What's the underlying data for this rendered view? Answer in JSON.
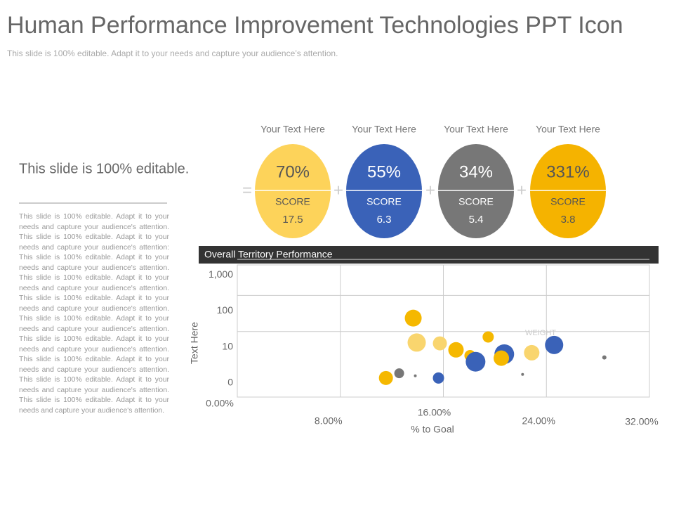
{
  "header": {
    "title": "Human Performance Improvement Technologies PPT Icon",
    "subtitle": "This slide is 100% editable. Adapt it to your needs and capture your audience’s attention."
  },
  "sidebar": {
    "heading": "This slide is 100% editable.",
    "body": "This slide is 100% editable. Adapt it to your needs and capture your audience's attention. This slide is 100% editable. Adapt it to your needs and capture your audience's attention: This slide is 100% editable. Adapt it to your needs and capture your audience's attention. This slide is 100% editable. Adapt it to your needs and capture your audience's attention. This slide is 100% editable. Adapt it to your needs and capture your audience's attention. This slide is 100% editable. Adapt it to your needs and capture your audience's attention. This slide is 100% editable. Adapt it to your needs and capture your audience's attention. This slide is 100% editable. Adapt it to your needs and capture your audience's attention. This slide is 100% editable. Adapt it to your needs and capture your audience's attention. This slide is 100% editable. Adapt it to your needs and capture your audience's attention."
  },
  "operators": [
    "=",
    "+",
    "+",
    "+"
  ],
  "cards": [
    {
      "caption": "Your Text Here",
      "percent": "70%",
      "label": "SCORE",
      "score": "17.5",
      "color": "#fdd35a"
    },
    {
      "caption": "Your Text Here",
      "percent": "55%",
      "label": "SCORE",
      "score": "6.3",
      "color": "#3a62b8"
    },
    {
      "caption": "Your Text Here",
      "percent": "34%",
      "label": "SCORE",
      "score": "5.4",
      "color": "#777777"
    },
    {
      "caption": "Your Text Here",
      "percent": "331%",
      "label": "SCORE",
      "score": "3.8",
      "color": "#f5b300"
    }
  ],
  "chart_data": {
    "type": "bubble",
    "title": "Overall Territory Performance",
    "xlabel": "% to Goal",
    "ylabel": "Text Here",
    "annotation": "WEIGHT",
    "x": [
      13.66,
      13.93,
      15.73,
      16.98,
      18.07,
      18.5,
      19.48,
      20.73,
      20.5,
      22.86,
      24.6,
      28.5,
      22.15,
      13.82,
      12.57,
      11.54,
      15.62
    ],
    "values": [
      82,
      21,
      19,
      9.2,
      7.6,
      5.9,
      35,
      8,
      6.9,
      8.4,
      15,
      7.1,
      2.4,
      2,
      2.7,
      1.4,
      1.4
    ],
    "sizes": [
      12,
      13,
      10,
      11,
      8,
      14,
      8,
      14,
      11,
      11,
      13,
      3,
      2,
      2,
      7,
      10,
      8
    ],
    "colors": [
      "#f5b800",
      "#f9d56e",
      "#f9d56e",
      "#f5b800",
      "#f5b800",
      "#3a62b8",
      "#f5b800",
      "#3a62b8",
      "#f5b800",
      "#f9d56e",
      "#3a62b8",
      "#777777",
      "#777777",
      "#777777",
      "#777777",
      "#f5b800",
      "#3a62b8"
    ],
    "xlim": [
      0,
      32
    ],
    "xticks": [
      {
        "value": 0,
        "label": "0.00%"
      },
      {
        "value": 8,
        "label": "8.00%"
      },
      {
        "value": 16,
        "label": "16.00%"
      },
      {
        "value": 24,
        "label": "24.00%"
      },
      {
        "value": 32,
        "label": "32.00%"
      }
    ],
    "ylim": [
      0,
      1000
    ],
    "yticks": [
      0,
      10,
      100,
      {
        "value": 1000,
        "label": "1,000"
      }
    ],
    "grid": true
  }
}
